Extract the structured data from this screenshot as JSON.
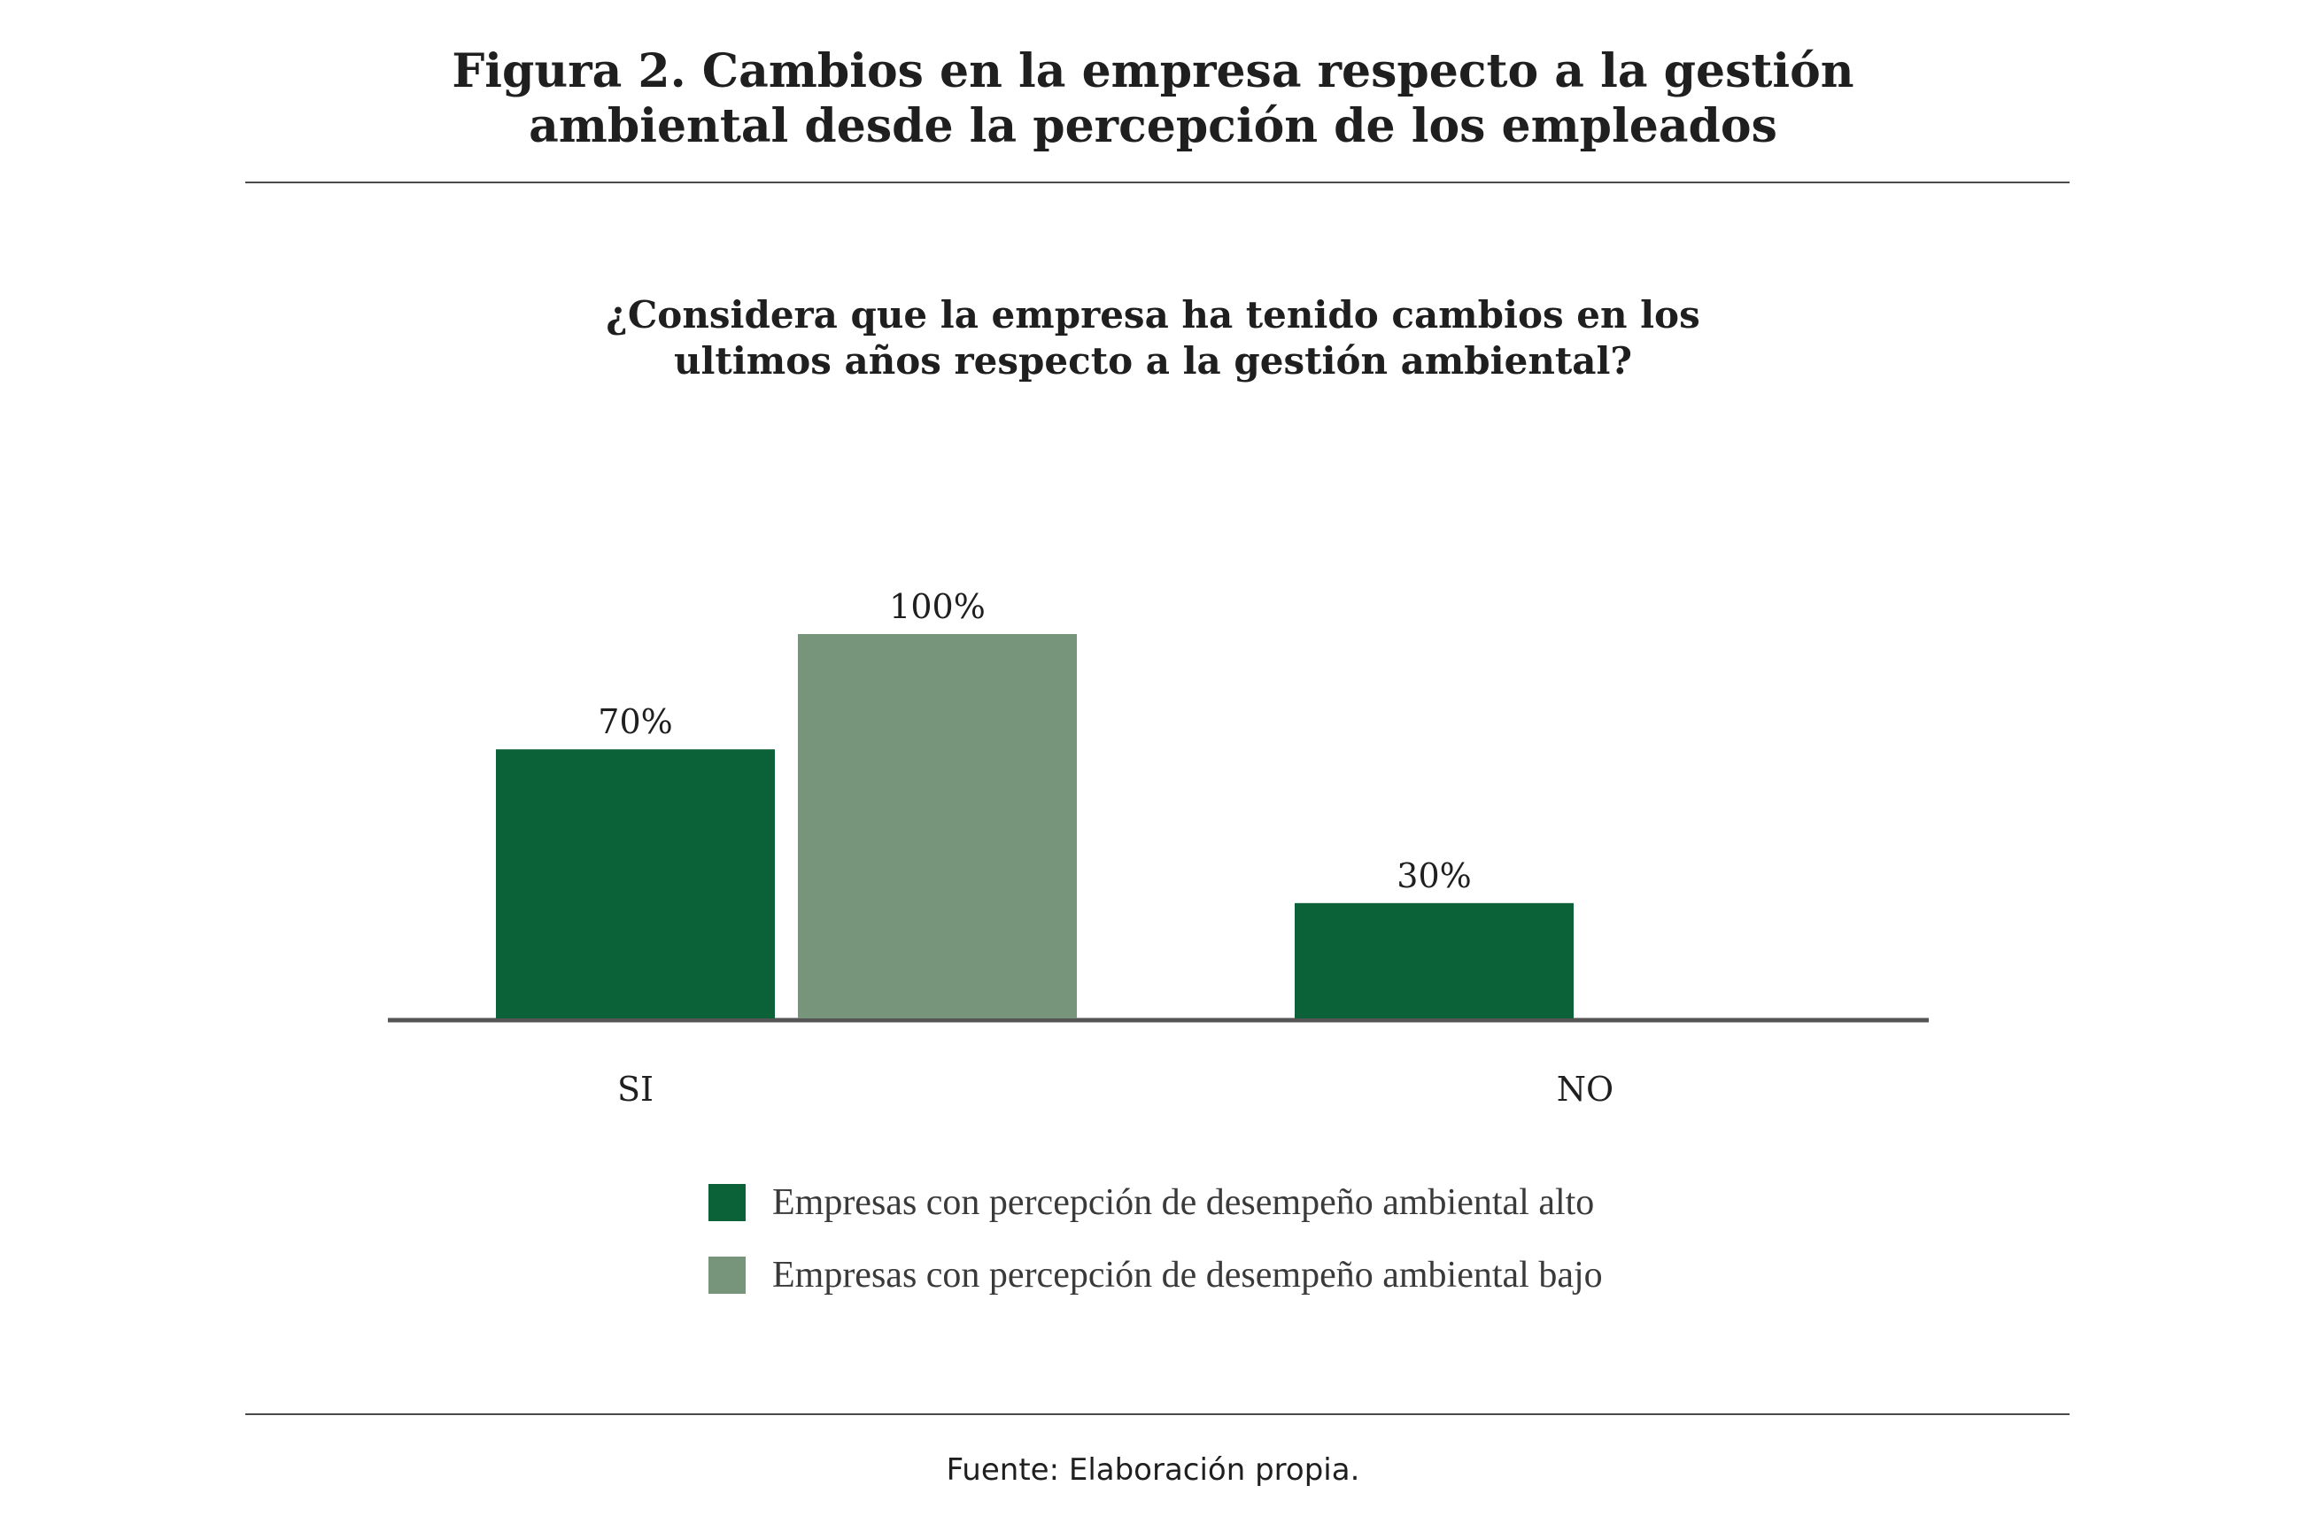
{
  "figure": {
    "title_line1": "Figura 2. Cambios en la empresa respecto a la gestión",
    "title_line2": "ambiental desde la percepción de los empleados",
    "source": "Fuente: Elaboración propia."
  },
  "colors": {
    "alto": "#0b6238",
    "bajo": "#77957a",
    "axis": "#555555"
  },
  "chart_data": {
    "type": "bar",
    "title_line1": "¿Considera que la empresa ha tenido cambios en los",
    "title_line2": "ultimos años respecto a la gestión ambiental?",
    "categories": [
      "SI",
      "NO"
    ],
    "series": [
      {
        "name": "Empresas con percepción de desempeño ambiental alto",
        "values": [
          70,
          30
        ],
        "labels": [
          "70%",
          "30%"
        ]
      },
      {
        "name": "Empresas con percepción de desempeño ambiental bajo",
        "values": [
          100,
          null
        ],
        "labels": [
          "100%",
          ""
        ]
      }
    ],
    "ylim": [
      0,
      100
    ],
    "grid": false,
    "legend_position": "bottom"
  }
}
